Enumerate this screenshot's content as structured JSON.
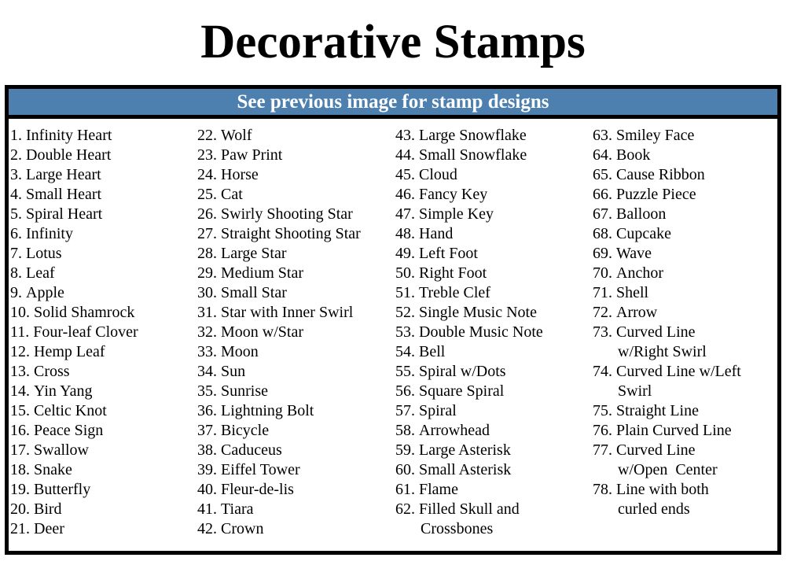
{
  "title": "Decorative Stamps",
  "banner": {
    "text": "See previous image for stamp designs"
  },
  "colors": {
    "banner_bg": "#4E80AF",
    "banner_text": "#FFFFFF",
    "border": "#000000",
    "text": "#000000",
    "page_bg": "#FFFFFF"
  },
  "list": {
    "columns": [
      {
        "items": [
          {
            "n": "1.",
            "lines": [
              "Infinity Heart"
            ]
          },
          {
            "n": "2.",
            "lines": [
              "Double Heart"
            ]
          },
          {
            "n": "3.",
            "lines": [
              "Large Heart"
            ]
          },
          {
            "n": "4.",
            "lines": [
              "Small Heart"
            ]
          },
          {
            "n": "5.",
            "lines": [
              "Spiral Heart"
            ]
          },
          {
            "n": "6.",
            "lines": [
              "Infinity"
            ]
          },
          {
            "n": "7.",
            "lines": [
              "Lotus"
            ]
          },
          {
            "n": "8.",
            "lines": [
              "Leaf"
            ]
          },
          {
            "n": "9.",
            "lines": [
              "Apple"
            ]
          },
          {
            "n": "10.",
            "lines": [
              "Solid Shamrock"
            ]
          },
          {
            "n": "11.",
            "lines": [
              "Four-leaf Clover"
            ]
          },
          {
            "n": "12.",
            "lines": [
              "Hemp Leaf"
            ]
          },
          {
            "n": "13.",
            "lines": [
              "Cross"
            ]
          },
          {
            "n": "14.",
            "lines": [
              "Yin Yang"
            ]
          },
          {
            "n": "15.",
            "lines": [
              "Celtic Knot"
            ]
          },
          {
            "n": "16.",
            "lines": [
              "Peace Sign"
            ]
          },
          {
            "n": "17.",
            "lines": [
              "Swallow"
            ]
          },
          {
            "n": "18.",
            "lines": [
              "Snake"
            ]
          },
          {
            "n": "19.",
            "lines": [
              "Butterfly"
            ]
          },
          {
            "n": "20.",
            "lines": [
              "Bird"
            ]
          },
          {
            "n": "21.",
            "lines": [
              "Deer"
            ]
          }
        ]
      },
      {
        "items": [
          {
            "n": "22.",
            "lines": [
              "Wolf"
            ]
          },
          {
            "n": "23.",
            "lines": [
              "Paw Print"
            ]
          },
          {
            "n": "24.",
            "lines": [
              "Horse"
            ]
          },
          {
            "n": "25.",
            "lines": [
              "Cat"
            ]
          },
          {
            "n": "26.",
            "lines": [
              "Swirly Shooting Star"
            ]
          },
          {
            "n": "27.",
            "lines": [
              "Straight Shooting Star"
            ]
          },
          {
            "n": "28.",
            "lines": [
              "Large Star"
            ]
          },
          {
            "n": "29.",
            "lines": [
              "Medium Star"
            ]
          },
          {
            "n": "30.",
            "lines": [
              "Small Star"
            ]
          },
          {
            "n": "31.",
            "lines": [
              "Star with Inner Swirl"
            ]
          },
          {
            "n": "32.",
            "lines": [
              "Moon w/Star"
            ]
          },
          {
            "n": "33.",
            "lines": [
              "Moon"
            ]
          },
          {
            "n": "34.",
            "lines": [
              "Sun"
            ]
          },
          {
            "n": "35.",
            "lines": [
              "Sunrise"
            ]
          },
          {
            "n": "36.",
            "lines": [
              "Lightning Bolt"
            ]
          },
          {
            "n": "37.",
            "lines": [
              "Bicycle"
            ]
          },
          {
            "n": "38.",
            "lines": [
              "Caduceus"
            ]
          },
          {
            "n": "39.",
            "lines": [
              "Eiffel Tower"
            ]
          },
          {
            "n": "40.",
            "lines": [
              "Fleur-de-lis"
            ]
          },
          {
            "n": "41.",
            "lines": [
              "Tiara"
            ]
          },
          {
            "n": "42.",
            "lines": [
              "Crown"
            ]
          }
        ]
      },
      {
        "items": [
          {
            "n": "43.",
            "lines": [
              "Large Snowflake"
            ]
          },
          {
            "n": "44.",
            "lines": [
              "Small Snowflake"
            ]
          },
          {
            "n": "45.",
            "lines": [
              "Cloud"
            ]
          },
          {
            "n": "46.",
            "lines": [
              "Fancy Key"
            ]
          },
          {
            "n": "47.",
            "lines": [
              "Simple Key"
            ]
          },
          {
            "n": "48.",
            "lines": [
              "Hand"
            ]
          },
          {
            "n": "49.",
            "lines": [
              "Left Foot"
            ]
          },
          {
            "n": "50.",
            "lines": [
              "Right Foot"
            ]
          },
          {
            "n": "51.",
            "lines": [
              "Treble Clef"
            ]
          },
          {
            "n": "52.",
            "lines": [
              "Single Music Note"
            ]
          },
          {
            "n": "53.",
            "lines": [
              "Double Music Note"
            ]
          },
          {
            "n": "54.",
            "lines": [
              "Bell"
            ]
          },
          {
            "n": "55.",
            "lines": [
              "Spiral w/Dots"
            ]
          },
          {
            "n": "56.",
            "lines": [
              "Square Spiral"
            ]
          },
          {
            "n": "57.",
            "lines": [
              "Spiral"
            ]
          },
          {
            "n": "58.",
            "lines": [
              "Arrowhead"
            ]
          },
          {
            "n": "59.",
            "lines": [
              "Large Asterisk"
            ]
          },
          {
            "n": "60.",
            "lines": [
              "Small Asterisk"
            ]
          },
          {
            "n": "61.",
            "lines": [
              "Flame"
            ]
          },
          {
            "n": "62.",
            "lines": [
              "Filled Skull and",
              "Crossbones"
            ]
          }
        ]
      },
      {
        "items": [
          {
            "n": "63.",
            "lines": [
              "Smiley Face"
            ]
          },
          {
            "n": "64.",
            "lines": [
              "Book"
            ]
          },
          {
            "n": "65.",
            "lines": [
              "Cause Ribbon"
            ]
          },
          {
            "n": "66.",
            "lines": [
              "Puzzle Piece"
            ]
          },
          {
            "n": "67.",
            "lines": [
              "Balloon"
            ]
          },
          {
            "n": "68.",
            "lines": [
              "Cupcake"
            ]
          },
          {
            "n": "69.",
            "lines": [
              "Wave"
            ]
          },
          {
            "n": "70.",
            "lines": [
              "Anchor"
            ]
          },
          {
            "n": "71.",
            "lines": [
              "Shell"
            ]
          },
          {
            "n": "72.",
            "lines": [
              "Arrow"
            ]
          },
          {
            "n": "73.",
            "lines": [
              "Curved Line",
              "w/Right Swirl"
            ]
          },
          {
            "n": "74.",
            "lines": [
              "Curved Line w/Left",
              "Swirl"
            ]
          },
          {
            "n": "75.",
            "lines": [
              "Straight Line"
            ]
          },
          {
            "n": "76.",
            "lines": [
              "Plain Curved Line"
            ]
          },
          {
            "n": "77.",
            "lines": [
              "Curved Line",
              "w/Open  Center"
            ]
          },
          {
            "n": "78.",
            "lines": [
              "Line with both",
              "curled ends"
            ]
          }
        ]
      }
    ]
  }
}
